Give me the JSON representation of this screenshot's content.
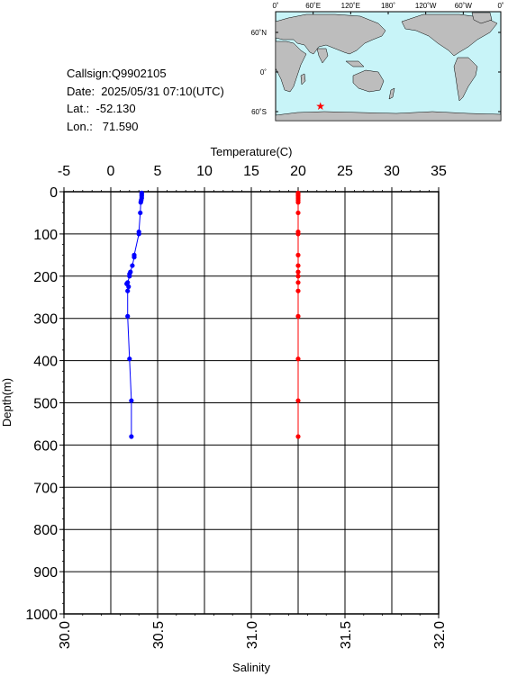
{
  "info": {
    "callsign": "Callsign:Q9902105",
    "date": "Date:  2025/05/31 07:10(UTC)",
    "lat": "Lat.:  -52.130",
    "lon": "Lon.:   71.590"
  },
  "map": {
    "top_labels": [
      "0˚",
      "60˚E",
      "120˚E",
      "180˚",
      "120˚W",
      "60˚W",
      "0˚"
    ],
    "right_labels": [
      "60˚N",
      "0˚",
      "60˚S"
    ],
    "marker": {
      "lon": 71.59,
      "lat": -52.13,
      "symbol": "★"
    },
    "colors": {
      "ocean": "#c8f4f8",
      "land": "#bdbdbd",
      "marker": "#ff0000"
    }
  },
  "chart_data": {
    "type": "line",
    "xlabel_top": "Temperature(C)",
    "xlabel_bottom": "Salinity",
    "ylabel": "Depth(m)",
    "temp_lim": [
      -5,
      35
    ],
    "sal_lim": [
      30.0,
      32.0
    ],
    "depth_lim": [
      0,
      1000
    ],
    "temp_ticks": [
      "-5",
      "0",
      "5",
      "10",
      "15",
      "20",
      "25",
      "30",
      "35"
    ],
    "sal_ticks": [
      "30.0",
      "30.5",
      "31.0",
      "31.5",
      "32.0"
    ],
    "depth_ticks": [
      "0",
      "100",
      "200",
      "300",
      "400",
      "500",
      "600",
      "700",
      "800",
      "900",
      "1000"
    ],
    "grid": true,
    "series": [
      {
        "axis": "temperature",
        "color": "#0000ff",
        "points": [
          [
            3.3,
            3
          ],
          [
            3.3,
            6
          ],
          [
            3.3,
            10
          ],
          [
            3.3,
            15
          ],
          [
            3.25,
            20
          ],
          [
            3.2,
            25
          ],
          [
            3.15,
            50
          ],
          [
            3.0,
            95
          ],
          [
            3.0,
            100
          ],
          [
            2.5,
            150
          ],
          [
            2.5,
            155
          ],
          [
            2.3,
            175
          ],
          [
            2.1,
            190
          ],
          [
            2.0,
            195
          ],
          [
            2.0,
            200
          ],
          [
            1.8,
            215
          ],
          [
            1.7,
            218
          ],
          [
            1.9,
            225
          ],
          [
            1.8,
            235
          ],
          [
            1.8,
            295
          ],
          [
            2.0,
            396
          ],
          [
            2.2,
            495
          ],
          [
            2.2,
            580
          ]
        ]
      },
      {
        "axis": "salinity",
        "color": "#ff0000",
        "points": [
          [
            31.25,
            3
          ],
          [
            31.25,
            6
          ],
          [
            31.25,
            10
          ],
          [
            31.25,
            15
          ],
          [
            31.25,
            20
          ],
          [
            31.25,
            25
          ],
          [
            31.25,
            50
          ],
          [
            31.25,
            95
          ],
          [
            31.25,
            100
          ],
          [
            31.25,
            150
          ],
          [
            31.25,
            175
          ],
          [
            31.25,
            190
          ],
          [
            31.25,
            200
          ],
          [
            31.25,
            215
          ],
          [
            31.25,
            235
          ],
          [
            31.25,
            295
          ],
          [
            31.25,
            396
          ],
          [
            31.25,
            495
          ],
          [
            31.25,
            580
          ]
        ]
      }
    ]
  }
}
